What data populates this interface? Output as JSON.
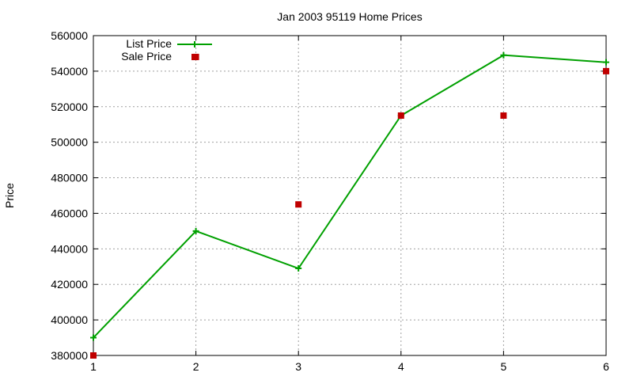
{
  "chart_data": {
    "type": "line",
    "title": "Jan 2003 95119 Home Prices",
    "xlabel": "",
    "ylabel": "Price",
    "x": [
      1,
      2,
      3,
      4,
      5,
      6
    ],
    "xlim": [
      1,
      6
    ],
    "ylim": [
      380000,
      560000
    ],
    "xticks": [
      1,
      2,
      3,
      4,
      5,
      6
    ],
    "yticks": [
      380000,
      400000,
      420000,
      440000,
      460000,
      480000,
      500000,
      520000,
      540000,
      560000
    ],
    "grid": true,
    "legend_position": "top-left",
    "series": [
      {
        "name": "List Price",
        "style": "line-with-plus-markers",
        "color": "#00a000",
        "values": [
          390000,
          450000,
          429000,
          515000,
          549000,
          545000
        ]
      },
      {
        "name": "Sale Price",
        "style": "square-markers",
        "color": "#c00000",
        "values": [
          380000,
          548000,
          465000,
          515000,
          515000,
          540000
        ]
      }
    ]
  }
}
